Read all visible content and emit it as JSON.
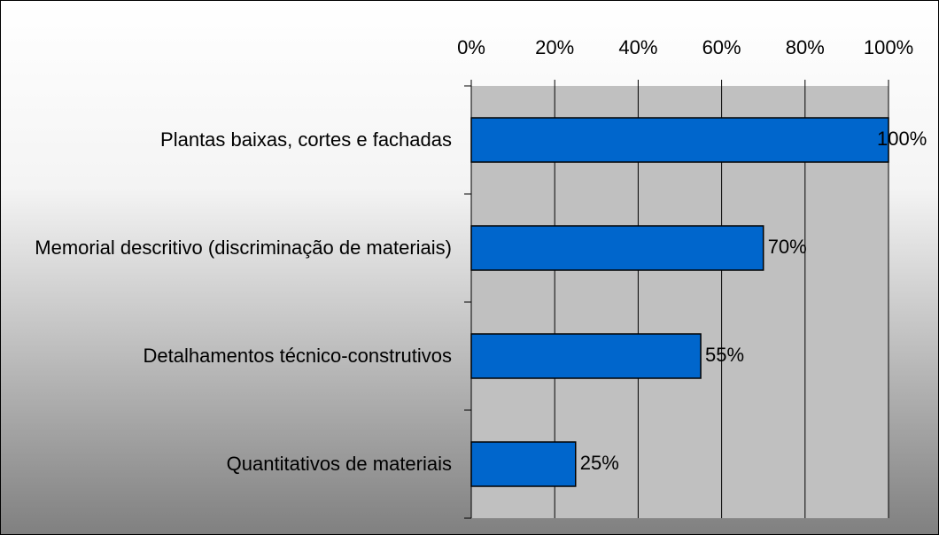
{
  "chart_data": {
    "type": "bar",
    "orientation": "horizontal",
    "categories": [
      "Plantas baixas, cortes e fachadas",
      "Memorial descritivo (discriminação de materiais)",
      "Detalhamentos técnico-construtivos",
      "Quantitativos de materiais"
    ],
    "values": [
      100,
      70,
      55,
      25
    ],
    "value_labels": [
      "100%",
      "70%",
      "55%",
      "25%"
    ],
    "color": "#0066cc",
    "xlim": [
      0,
      100
    ],
    "xticks": [
      {
        "value": 0,
        "label": "0%"
      },
      {
        "value": 20,
        "label": "20%"
      },
      {
        "value": 40,
        "label": "40%"
      },
      {
        "value": 60,
        "label": "60%"
      },
      {
        "value": 80,
        "label": "80%"
      },
      {
        "value": 100,
        "label": "100%"
      }
    ],
    "grid": true
  }
}
